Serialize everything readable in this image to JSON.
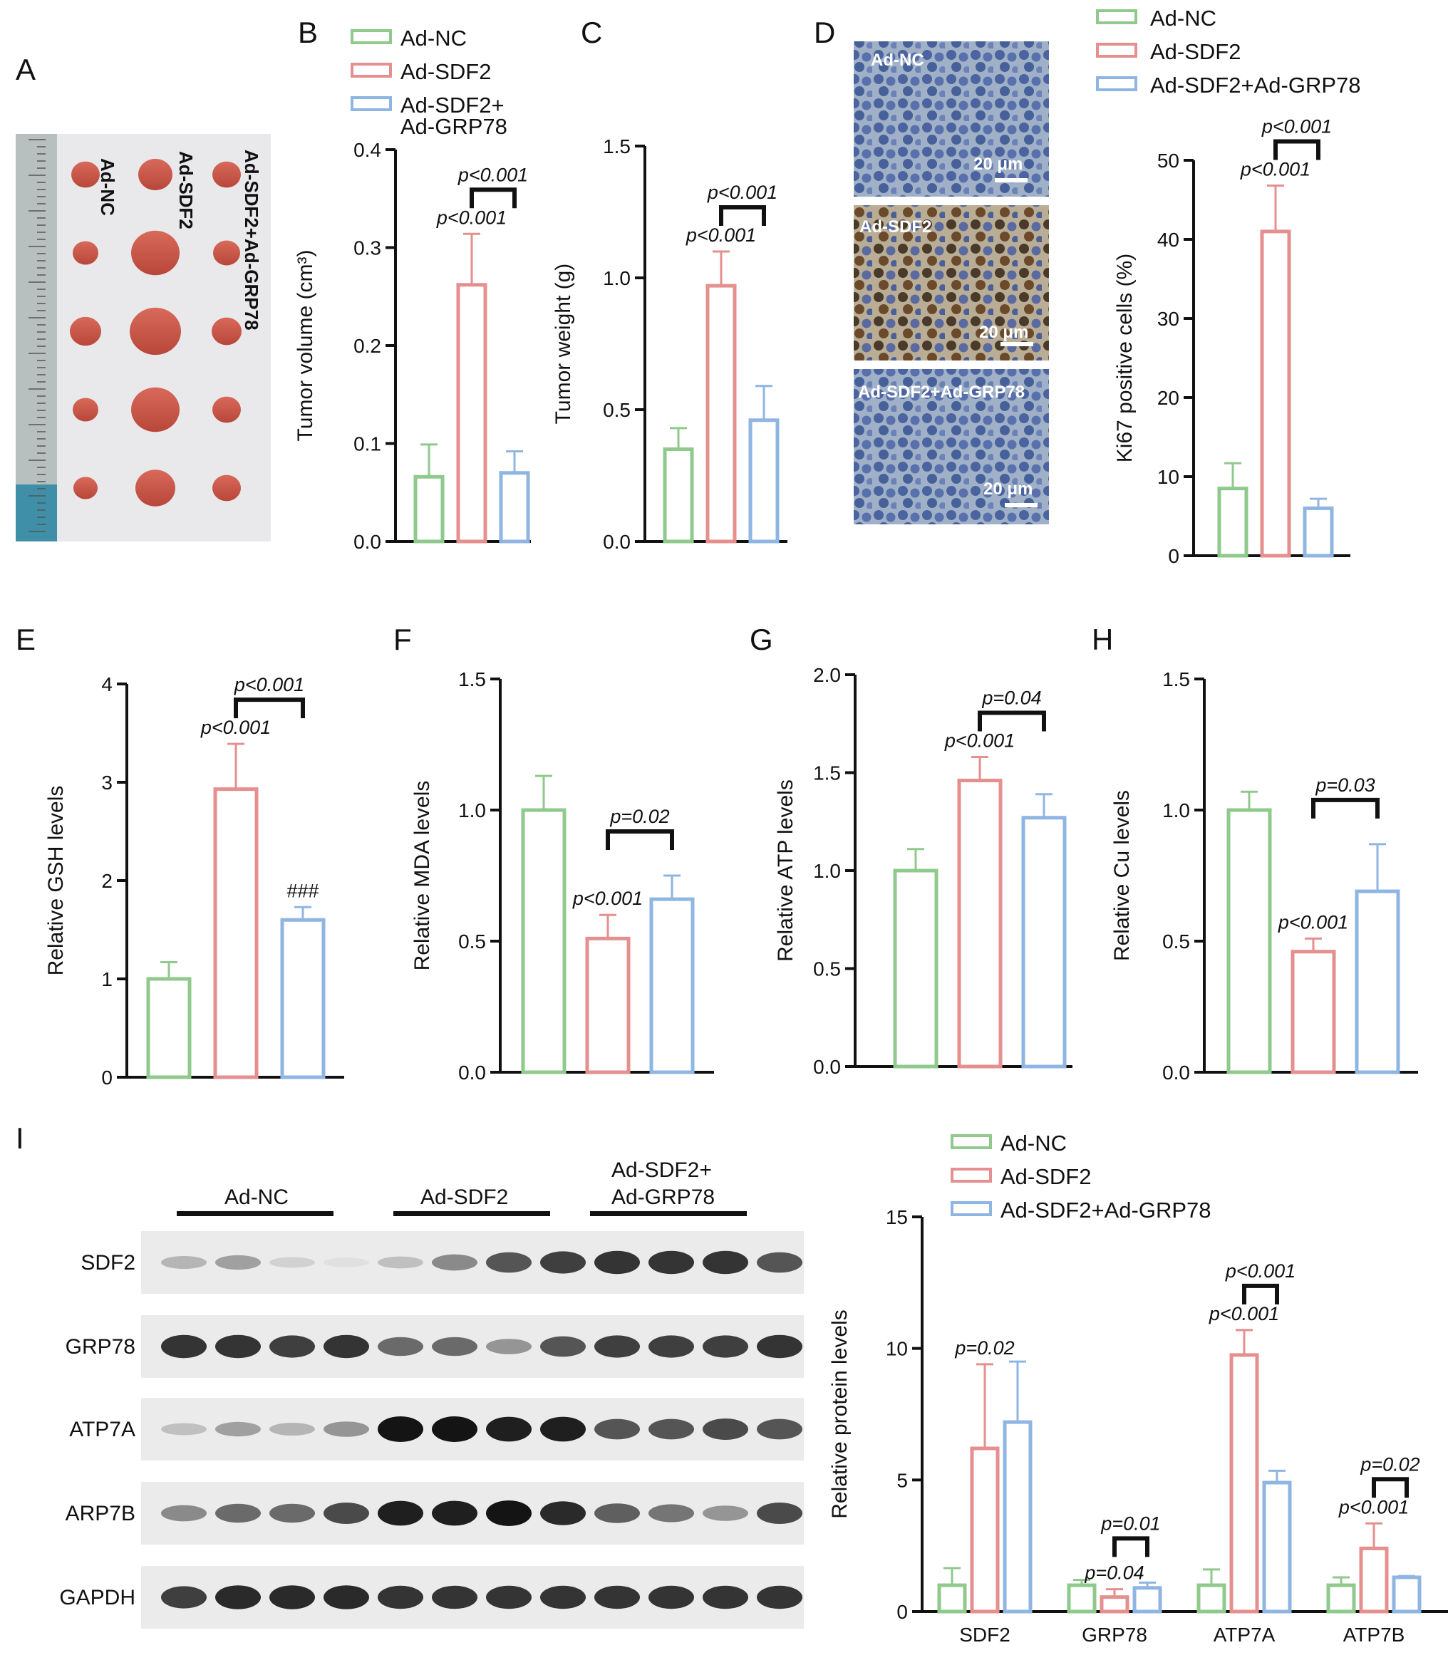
{
  "colors": {
    "ad_nc": "#8fc98c",
    "ad_sdf2": "#e58f8f",
    "ad_sdf2_grp78": "#8fb6e3"
  },
  "panel_letters": [
    "A",
    "B",
    "C",
    "D",
    "E",
    "F",
    "G",
    "H",
    "I"
  ],
  "legend_entries": {
    "B": [
      "Ad-NC",
      "Ad-SDF2",
      "Ad-SDF2+",
      "Ad-GRP78"
    ],
    "D": [
      "Ad-NC",
      "Ad-SDF2",
      "Ad-SDF2+Ad-GRP78"
    ],
    "I": [
      "Ad-NC",
      "Ad-SDF2",
      "Ad-SDF2+Ad-GRP78"
    ]
  },
  "photo_labels": [
    "Ad-NC",
    "Ad-SDF2",
    "Ad-SDF2+Ad-GRP78"
  ],
  "micro_labels": [
    "Ad-NC",
    "Ad-SDF2",
    "Ad-SDF2+Ad-GRP78"
  ],
  "scale_bar_label": "20 μm",
  "blot": {
    "groups": [
      "Ad-NC",
      "Ad-SDF2",
      "Ad-SDF2+",
      "Ad-GRP78"
    ],
    "proteins": [
      "SDF2",
      "GRP78",
      "ATP7A",
      "ARP7B",
      "GAPDH"
    ]
  },
  "chart_data": [
    {
      "panel": "B",
      "type": "bar",
      "categories": [
        "Ad-NC",
        "Ad-SDF2",
        "Ad-SDF2+Ad-GRP78"
      ],
      "values": [
        0.066,
        0.262,
        0.07
      ],
      "errors": [
        0.033,
        0.052,
        0.022
      ],
      "ylabel": "Tumor volume (cm³)",
      "ylim": [
        0,
        0.4
      ],
      "yticks": [
        "0.0",
        "0.1",
        "0.2",
        "0.3",
        "0.4"
      ],
      "annotations": [
        {
          "text": "p<0.001",
          "type": "label",
          "bar": 1
        },
        {
          "text": "p<0.001",
          "type": "bracket",
          "from": 1,
          "to": 2
        }
      ]
    },
    {
      "panel": "C",
      "type": "bar",
      "categories": [
        "Ad-NC",
        "Ad-SDF2",
        "Ad-SDF2+Ad-GRP78"
      ],
      "values": [
        0.35,
        0.97,
        0.46
      ],
      "errors": [
        0.08,
        0.13,
        0.13
      ],
      "ylabel": "Tumor weight (g)",
      "ylim": [
        0,
        1.5
      ],
      "yticks": [
        "0.0",
        "0.5",
        "1.0",
        "1.5"
      ],
      "annotations": [
        {
          "text": "p<0.001",
          "type": "label",
          "bar": 1
        },
        {
          "text": "p<0.001",
          "type": "bracket",
          "from": 1,
          "to": 2
        }
      ]
    },
    {
      "panel": "D",
      "type": "bar",
      "categories": [
        "Ad-NC",
        "Ad-SDF2",
        "Ad-SDF2+Ad-GRP78"
      ],
      "values": [
        8.5,
        41,
        6
      ],
      "errors": [
        3.2,
        5.8,
        1.2
      ],
      "ylabel": "Ki67 positive cells (%)",
      "ylim": [
        0,
        50
      ],
      "yticks": [
        "0",
        "10",
        "20",
        "30",
        "40",
        "50"
      ],
      "annotations": [
        {
          "text": "p<0.001",
          "type": "label",
          "bar": 1
        },
        {
          "text": "p<0.001",
          "type": "bracket",
          "from": 1,
          "to": 2
        }
      ]
    },
    {
      "panel": "E",
      "type": "bar",
      "categories": [
        "Ad-NC",
        "Ad-SDF2",
        "Ad-SDF2+Ad-GRP78"
      ],
      "values": [
        1.0,
        2.93,
        1.6
      ],
      "errors": [
        0.17,
        0.46,
        0.13
      ],
      "ylabel": "Relative GSH levels",
      "ylim": [
        0,
        4
      ],
      "yticks": [
        "0",
        "1",
        "2",
        "3",
        "4"
      ],
      "annotations": [
        {
          "text": "p<0.001",
          "type": "label",
          "bar": 1
        },
        {
          "text": "p<0.001",
          "type": "bracket",
          "from": 1,
          "to": 2
        },
        {
          "text": "###",
          "type": "label",
          "bar": 2
        }
      ]
    },
    {
      "panel": "F",
      "type": "bar",
      "categories": [
        "Ad-NC",
        "Ad-SDF2",
        "Ad-SDF2+Ad-GRP78"
      ],
      "values": [
        1.0,
        0.51,
        0.66
      ],
      "errors": [
        0.13,
        0.09,
        0.09
      ],
      "ylabel": "Relative MDA levels",
      "ylim": [
        0,
        1.5
      ],
      "yticks": [
        "0.0",
        "0.5",
        "1.0",
        "1.5"
      ],
      "annotations": [
        {
          "text": "p<0.001",
          "type": "label",
          "bar": 1
        },
        {
          "text": "p=0.02",
          "type": "bracket",
          "from": 1,
          "to": 2
        }
      ]
    },
    {
      "panel": "G",
      "type": "bar",
      "categories": [
        "Ad-NC",
        "Ad-SDF2",
        "Ad-SDF2+Ad-GRP78"
      ],
      "values": [
        1.0,
        1.46,
        1.27
      ],
      "errors": [
        0.11,
        0.12,
        0.12
      ],
      "ylabel": "Relative ATP levels",
      "ylim": [
        0,
        2.0
      ],
      "yticks": [
        "0.0",
        "0.5",
        "1.0",
        "1.5",
        "2.0"
      ],
      "annotations": [
        {
          "text": "p<0.001",
          "type": "label",
          "bar": 1
        },
        {
          "text": "p=0.04",
          "type": "bracket",
          "from": 1,
          "to": 2
        }
      ]
    },
    {
      "panel": "H",
      "type": "bar",
      "categories": [
        "Ad-NC",
        "Ad-SDF2",
        "Ad-SDF2+Ad-GRP78"
      ],
      "values": [
        1.0,
        0.46,
        0.69
      ],
      "errors": [
        0.07,
        0.05,
        0.18
      ],
      "ylabel": "Relative Cu levels",
      "ylim": [
        0,
        1.5
      ],
      "yticks": [
        "0.0",
        "0.5",
        "1.0",
        "1.5"
      ],
      "annotations": [
        {
          "text": "p<0.001",
          "type": "label",
          "bar": 1
        },
        {
          "text": "p=0.03",
          "type": "bracket",
          "from": 1,
          "to": 2
        }
      ]
    },
    {
      "panel": "I",
      "type": "bar",
      "categories": [
        "SDF2",
        "GRP78",
        "ATP7A",
        "ATP7B"
      ],
      "series": [
        {
          "name": "Ad-NC",
          "values": [
            1.0,
            1.0,
            1.0,
            1.0
          ],
          "errors": [
            0.65,
            0.2,
            0.6,
            0.3
          ]
        },
        {
          "name": "Ad-SDF2",
          "values": [
            6.2,
            0.55,
            9.75,
            2.4
          ],
          "errors": [
            3.2,
            0.3,
            0.95,
            0.95
          ]
        },
        {
          "name": "Ad-SDF2+Ad-GRP78",
          "values": [
            7.2,
            0.9,
            4.9,
            1.3
          ],
          "errors": [
            2.3,
            0.2,
            0.45,
            0.05
          ]
        }
      ],
      "ylabel": "Relative protein levels",
      "ylim": [
        0,
        15
      ],
      "yticks": [
        "0",
        "5",
        "10",
        "15"
      ],
      "annotations": [
        {
          "text": "p=0.02",
          "type": "label",
          "group": 0,
          "bar": 1
        },
        {
          "text": "p=0.04",
          "type": "label",
          "group": 1,
          "bar": 1
        },
        {
          "text": "p=0.01",
          "type": "bracket",
          "group": 1,
          "from": 1,
          "to": 2
        },
        {
          "text": "p<0.001",
          "type": "label",
          "group": 2,
          "bar": 1
        },
        {
          "text": "p<0.001",
          "type": "bracket",
          "group": 2,
          "from": 1,
          "to": 2
        },
        {
          "text": "p<0.001",
          "type": "label",
          "group": 3,
          "bar": 1
        },
        {
          "text": "p=0.02",
          "type": "bracket",
          "group": 3,
          "from": 1,
          "to": 2
        }
      ]
    }
  ]
}
